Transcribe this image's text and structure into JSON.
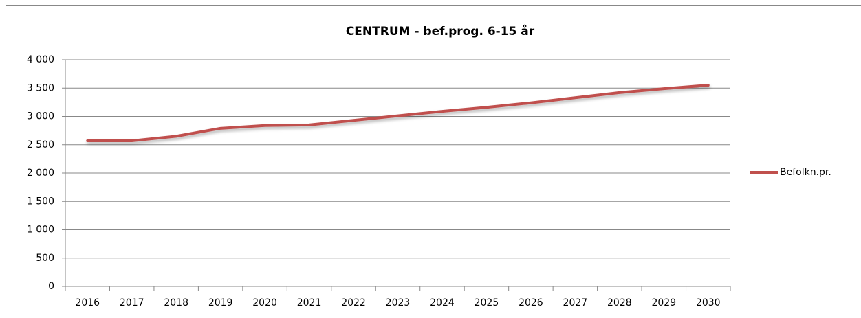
{
  "chart_data": {
    "type": "line",
    "title": "CENTRUM - bef.prog. 6-15 år",
    "categories": [
      "2016",
      "2017",
      "2018",
      "2019",
      "2020",
      "2021",
      "2022",
      "2023",
      "2024",
      "2025",
      "2026",
      "2027",
      "2028",
      "2029",
      "2030"
    ],
    "series": [
      {
        "name": "Befolkn.pr.",
        "color": "#c0504d",
        "values": [
          2570,
          2570,
          2650,
          2790,
          2840,
          2850,
          2930,
          3010,
          3090,
          3160,
          3240,
          3330,
          3420,
          3490,
          3550
        ]
      }
    ],
    "ylim": [
      0,
      4000
    ],
    "yticks": [
      0,
      500,
      {
        "value": 1000,
        "label": "1 000"
      },
      {
        "value": 1500,
        "label": "1 500"
      },
      {
        "value": 2000,
        "label": "2 000"
      },
      {
        "value": 2500,
        "label": "2 500"
      },
      {
        "value": 3000,
        "label": "3 000"
      },
      {
        "value": 3500,
        "label": "3 500"
      },
      {
        "value": 4000,
        "label": "4 000"
      }
    ],
    "grid": true,
    "legend": "right"
  }
}
